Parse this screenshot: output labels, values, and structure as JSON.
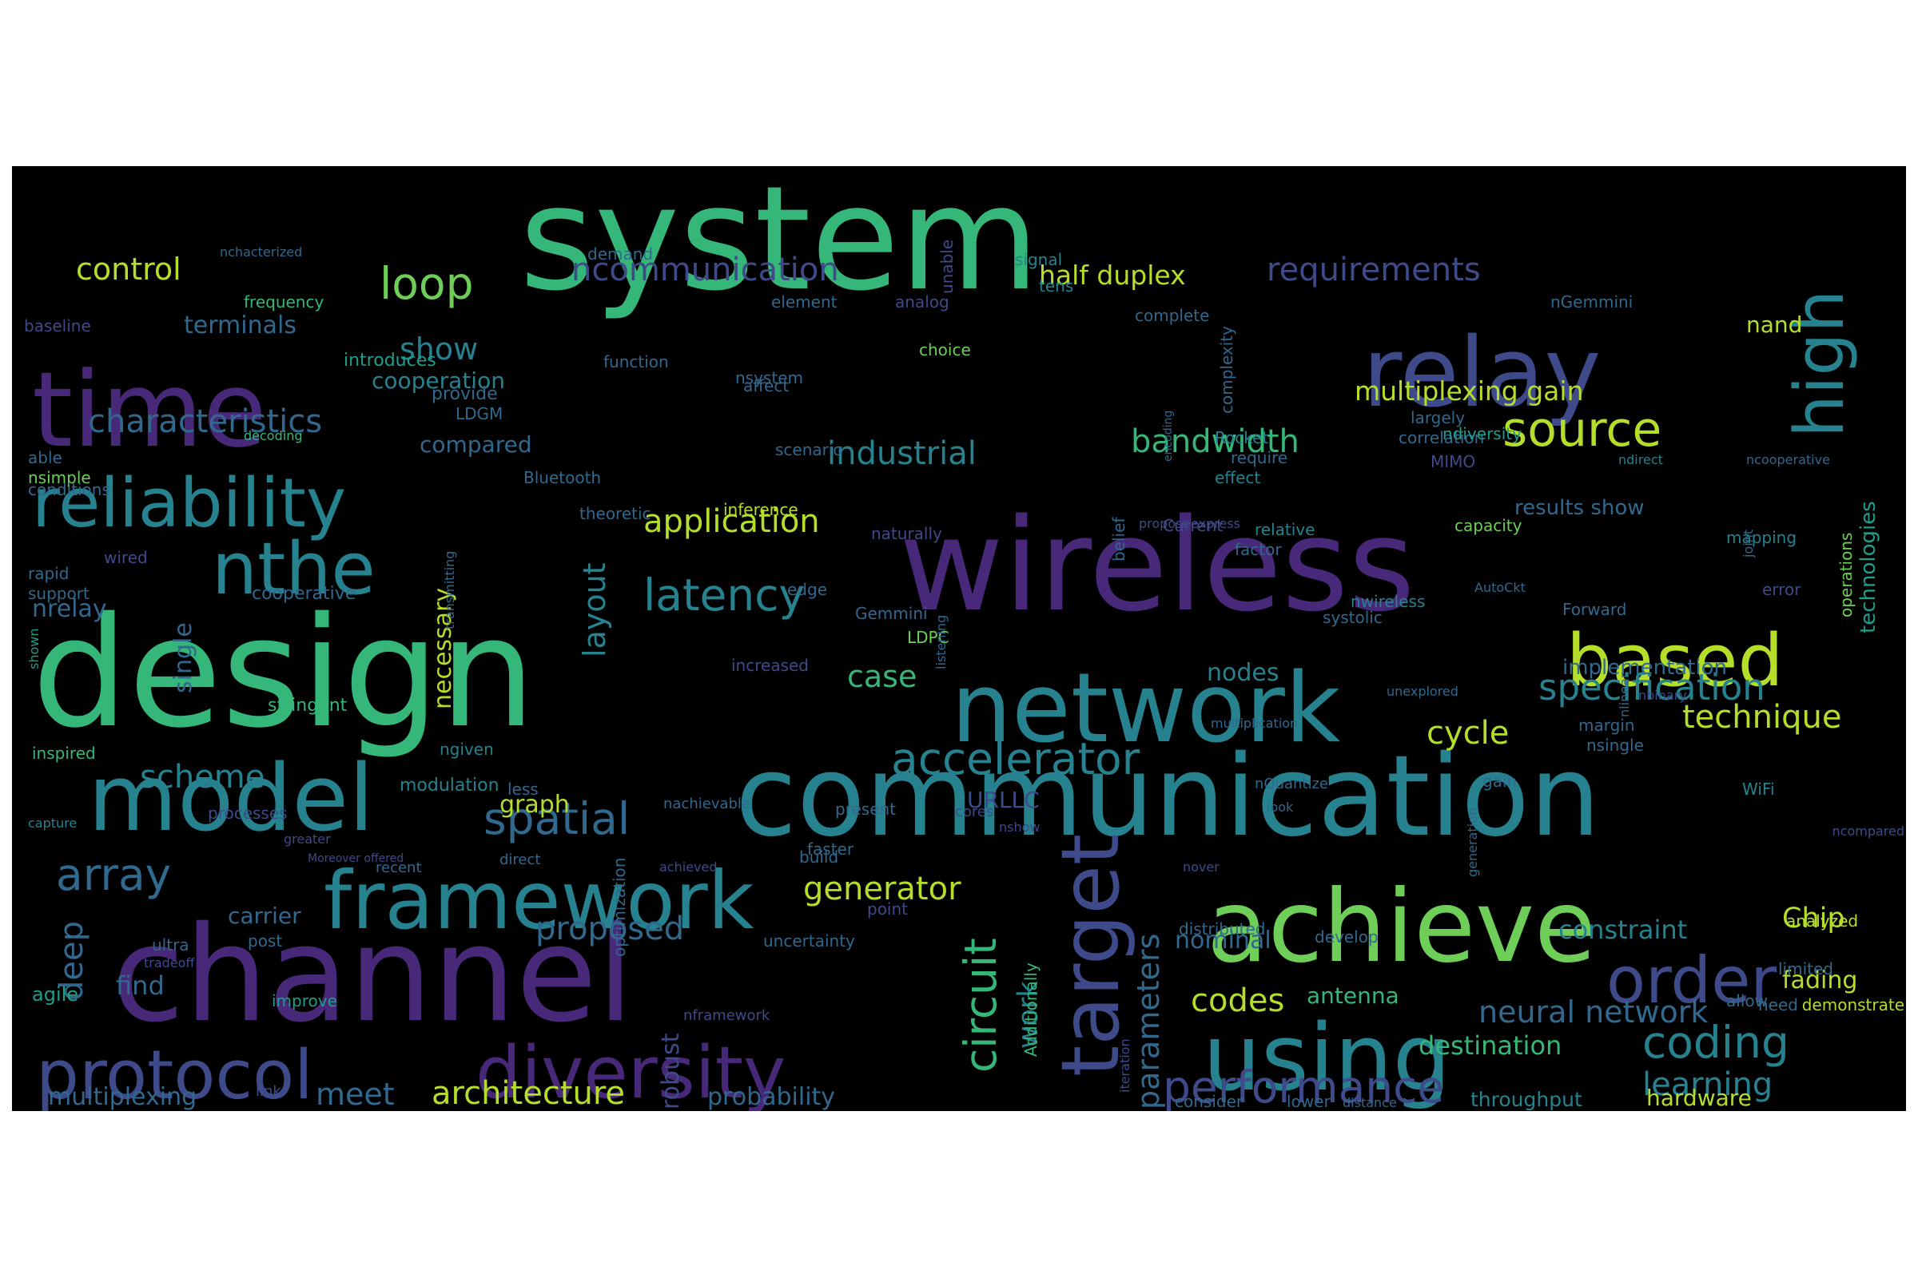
{
  "palette": [
    "#440154",
    "#482878",
    "#3e4a89",
    "#31688e",
    "#26828e",
    "#1f9e89",
    "#35b779",
    "#6ece58",
    "#b5de2b",
    "#fde725"
  ],
  "words": [
    {
      "text": "system"
    },
    {
      "text": "design"
    },
    {
      "text": "wireless"
    },
    {
      "text": "channel"
    },
    {
      "text": "communication"
    },
    {
      "text": "time"
    },
    {
      "text": "relay"
    },
    {
      "text": "network"
    },
    {
      "text": "model"
    },
    {
      "text": "achieve"
    },
    {
      "text": "using"
    },
    {
      "text": "reliability"
    },
    {
      "text": "framework"
    },
    {
      "text": "protocol"
    },
    {
      "text": "diversity"
    },
    {
      "text": "based"
    },
    {
      "text": "nthe"
    },
    {
      "text": "target"
    },
    {
      "text": "order"
    },
    {
      "text": "high"
    },
    {
      "text": "latency"
    },
    {
      "text": "accelerator"
    },
    {
      "text": "performance"
    },
    {
      "text": "source"
    },
    {
      "text": "coding"
    },
    {
      "text": "spatial"
    },
    {
      "text": "array"
    },
    {
      "text": "loop"
    },
    {
      "text": "circuit"
    },
    {
      "text": "specification"
    },
    {
      "text": "ncommunication"
    },
    {
      "text": "requirements"
    },
    {
      "text": "characteristics"
    },
    {
      "text": "industrial"
    },
    {
      "text": "bandwidth"
    },
    {
      "text": "application"
    },
    {
      "text": "learning"
    },
    {
      "text": "architecture"
    },
    {
      "text": "multiplexing gain"
    },
    {
      "text": "technique"
    },
    {
      "text": "half duplex"
    },
    {
      "text": "control"
    },
    {
      "text": "proposed"
    },
    {
      "text": "generator"
    },
    {
      "text": "deep"
    },
    {
      "text": "neural network"
    },
    {
      "text": "scheme"
    },
    {
      "text": "codes"
    },
    {
      "text": "cycle"
    },
    {
      "text": "layout"
    },
    {
      "text": "case"
    },
    {
      "text": "parameters"
    },
    {
      "text": "Chip"
    },
    {
      "text": "show"
    },
    {
      "text": "cooperation"
    },
    {
      "text": "meet"
    },
    {
      "text": "work"
    },
    {
      "text": "fading"
    },
    {
      "text": "destination"
    },
    {
      "text": "constraint"
    },
    {
      "text": "probability"
    },
    {
      "text": "necessary"
    },
    {
      "text": "graph"
    },
    {
      "text": "terminals"
    },
    {
      "text": "compared"
    },
    {
      "text": "nominal"
    },
    {
      "text": "multiplexing"
    },
    {
      "text": "antenna"
    },
    {
      "text": "single"
    },
    {
      "text": "nodes"
    },
    {
      "text": "robust"
    },
    {
      "text": "URLLC"
    },
    {
      "text": "results show"
    },
    {
      "text": "implementation"
    },
    {
      "text": "hardware"
    },
    {
      "text": "throughput"
    },
    {
      "text": "find"
    },
    {
      "text": "nrelay"
    },
    {
      "text": "carrier"
    },
    {
      "text": "nand"
    },
    {
      "text": "technologies"
    },
    {
      "text": "frequency"
    },
    {
      "text": "baseline"
    },
    {
      "text": "nGemmini"
    },
    {
      "text": "analog"
    },
    {
      "text": "nsimple"
    },
    {
      "text": "able"
    },
    {
      "text": "conditions"
    },
    {
      "text": "rapid"
    },
    {
      "text": "support"
    },
    {
      "text": "inspired"
    },
    {
      "text": "capture"
    },
    {
      "text": "agile"
    },
    {
      "text": "introduces"
    },
    {
      "text": "provide"
    },
    {
      "text": "LDGM"
    },
    {
      "text": "decoding"
    },
    {
      "text": "wired"
    },
    {
      "text": "cooperative"
    },
    {
      "text": "stringent"
    },
    {
      "text": "ngiven"
    },
    {
      "text": "less"
    },
    {
      "text": "modulation"
    },
    {
      "text": "processes"
    },
    {
      "text": "greater"
    },
    {
      "text": "Moreover offered"
    },
    {
      "text": "recent"
    },
    {
      "text": "post"
    },
    {
      "text": "ultra"
    },
    {
      "text": "tradeoff"
    },
    {
      "text": "improve"
    },
    {
      "text": "link"
    },
    {
      "text": "nframework"
    },
    {
      "text": "direct"
    },
    {
      "text": "achieved"
    },
    {
      "text": "demand"
    },
    {
      "text": "unable"
    },
    {
      "text": "signal"
    },
    {
      "text": "element"
    },
    {
      "text": "tens"
    },
    {
      "text": "complete"
    },
    {
      "text": "choice"
    },
    {
      "text": "affect"
    },
    {
      "text": "function"
    },
    {
      "text": "nsystem"
    },
    {
      "text": "scenario"
    },
    {
      "text": "Bluetooth"
    },
    {
      "text": "theoretic"
    },
    {
      "text": "inference"
    },
    {
      "text": "naturally"
    },
    {
      "text": "edge"
    },
    {
      "text": "Gemmini"
    },
    {
      "text": "increased"
    },
    {
      "text": "LDPC"
    },
    {
      "text": "nachievable"
    },
    {
      "text": "present"
    },
    {
      "text": "cores"
    },
    {
      "text": "build"
    },
    {
      "text": "faster"
    },
    {
      "text": "point"
    },
    {
      "text": "uncertainty"
    },
    {
      "text": "distributed"
    },
    {
      "text": "develop"
    },
    {
      "text": "nover"
    },
    {
      "text": "iteration"
    },
    {
      "text": "Additionally"
    },
    {
      "text": "optimization"
    },
    {
      "text": "encoding"
    },
    {
      "text": "Rocket"
    },
    {
      "text": "effect"
    },
    {
      "text": "Current"
    },
    {
      "text": "express"
    },
    {
      "text": "relative"
    },
    {
      "text": "propose"
    },
    {
      "text": "capacity"
    },
    {
      "text": "MIMO"
    },
    {
      "text": "largely"
    },
    {
      "text": "belief"
    },
    {
      "text": "correlation"
    },
    {
      "text": "complexity"
    },
    {
      "text": "ndiversity"
    },
    {
      "text": "systolic"
    },
    {
      "text": "nwireless"
    },
    {
      "text": "factor"
    },
    {
      "text": "AutoCkt"
    },
    {
      "text": "Forward"
    },
    {
      "text": "mapping"
    },
    {
      "text": "error"
    },
    {
      "text": "joint"
    },
    {
      "text": "ncooperative"
    },
    {
      "text": "ndirect"
    },
    {
      "text": "require"
    },
    {
      "text": "unexplored"
    },
    {
      "text": "nbinary"
    },
    {
      "text": "ncompared"
    },
    {
      "text": "operations"
    },
    {
      "text": "margin"
    },
    {
      "text": "nsingle"
    },
    {
      "text": "nlinear"
    },
    {
      "text": "generation"
    },
    {
      "text": "gain"
    },
    {
      "text": "WiFi"
    },
    {
      "text": "analyzed"
    },
    {
      "text": "limited"
    },
    {
      "text": "allow"
    },
    {
      "text": "demonstrate"
    },
    {
      "text": "need"
    },
    {
      "text": "consider"
    },
    {
      "text": "lower"
    },
    {
      "text": "distance"
    },
    {
      "text": "nQuantize"
    },
    {
      "text": "look"
    },
    {
      "text": "shown"
    },
    {
      "text": "multiplication"
    },
    {
      "text": "listening"
    },
    {
      "text": "transmitting"
    },
    {
      "text": "nshow"
    },
    {
      "text": "nchacterized"
    }
  ]
}
